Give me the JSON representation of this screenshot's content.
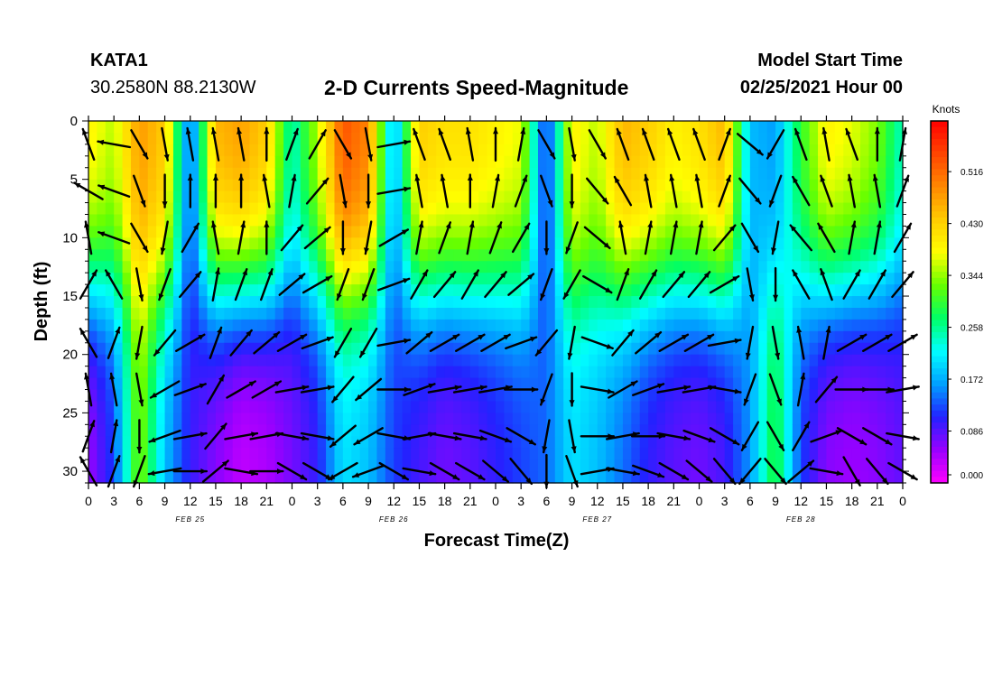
{
  "header": {
    "station_id": "KATA1",
    "coordinates": "30.2580N 88.2130W",
    "title": "2-D Currents Speed-Magnitude",
    "model_start_label": "Model Start Time",
    "model_start_value": "02/25/2021 Hour 00"
  },
  "chart_data": {
    "type": "heatmap",
    "title": "2-D Currents Speed-Magnitude",
    "xlabel": "Forecast Time(Z)",
    "ylabel": "Depth (ft)",
    "x_ticks": [
      "0",
      "3",
      "6",
      "9",
      "12",
      "15",
      "18",
      "21",
      "0",
      "3",
      "6",
      "9",
      "12",
      "15",
      "18",
      "21",
      "0",
      "3",
      "6",
      "9",
      "12",
      "15",
      "18",
      "21",
      "0",
      "3",
      "6",
      "9",
      "12",
      "15",
      "18",
      "21",
      "0"
    ],
    "x_range_hours": [
      0,
      96
    ],
    "date_labels": [
      {
        "hour": 12,
        "label": "FEB 25"
      },
      {
        "hour": 36,
        "label": "FEB 26"
      },
      {
        "hour": 60,
        "label": "FEB 27"
      },
      {
        "hour": 84,
        "label": "FEB 28"
      }
    ],
    "y_ticks": [
      0,
      5,
      10,
      15,
      20,
      25,
      30
    ],
    "ylim": [
      31,
      0
    ],
    "colorbar": {
      "unit": "Knots",
      "range": [
        0.0,
        0.6
      ],
      "ticks": [
        "0.000",
        "0.086",
        "0.172",
        "0.258",
        "0.344",
        "0.430",
        "0.516"
      ],
      "colors": [
        "#ff00ff",
        "#9900ff",
        "#2222ff",
        "#00a0ff",
        "#00ffff",
        "#00ff66",
        "#66ff00",
        "#ffff00",
        "#ffcc00",
        "#ff8800",
        "#ff4400",
        "#ff0000"
      ]
    },
    "profiles": [
      {
        "hour": 0,
        "surface": 0.4,
        "bottom": 0.05
      },
      {
        "hour": 3,
        "surface": 0.36,
        "bottom": 0.12
      },
      {
        "hour": 6,
        "surface": 0.48,
        "bottom": 0.34
      },
      {
        "hour": 9,
        "surface": 0.44,
        "bottom": 0.18
      },
      {
        "hour": 12,
        "surface": 0.12,
        "bottom": 0.1
      },
      {
        "hour": 15,
        "surface": 0.46,
        "bottom": 0.06
      },
      {
        "hour": 18,
        "surface": 0.48,
        "bottom": 0.03
      },
      {
        "hour": 21,
        "surface": 0.44,
        "bottom": 0.04
      },
      {
        "hour": 24,
        "surface": 0.24,
        "bottom": 0.07
      },
      {
        "hour": 27,
        "surface": 0.36,
        "bottom": 0.1
      },
      {
        "hour": 30,
        "surface": 0.54,
        "bottom": 0.2
      },
      {
        "hour": 33,
        "surface": 0.5,
        "bottom": 0.18
      },
      {
        "hour": 36,
        "surface": 0.16,
        "bottom": 0.12
      },
      {
        "hour": 39,
        "surface": 0.44,
        "bottom": 0.09
      },
      {
        "hour": 42,
        "surface": 0.42,
        "bottom": 0.07
      },
      {
        "hour": 45,
        "surface": 0.42,
        "bottom": 0.08
      },
      {
        "hour": 48,
        "surface": 0.4,
        "bottom": 0.1
      },
      {
        "hour": 51,
        "surface": 0.38,
        "bottom": 0.12
      },
      {
        "hour": 54,
        "surface": 0.1,
        "bottom": 0.14
      },
      {
        "hour": 57,
        "surface": 0.4,
        "bottom": 0.2
      },
      {
        "hour": 60,
        "surface": 0.36,
        "bottom": 0.18
      },
      {
        "hour": 63,
        "surface": 0.46,
        "bottom": 0.14
      },
      {
        "hour": 66,
        "surface": 0.44,
        "bottom": 0.1
      },
      {
        "hour": 69,
        "surface": 0.4,
        "bottom": 0.08
      },
      {
        "hour": 72,
        "surface": 0.42,
        "bottom": 0.07
      },
      {
        "hour": 75,
        "surface": 0.46,
        "bottom": 0.09
      },
      {
        "hour": 78,
        "surface": 0.18,
        "bottom": 0.16
      },
      {
        "hour": 81,
        "surface": 0.16,
        "bottom": 0.3
      },
      {
        "hour": 84,
        "surface": 0.3,
        "bottom": 0.12
      },
      {
        "hour": 87,
        "surface": 0.4,
        "bottom": 0.06
      },
      {
        "hour": 90,
        "surface": 0.38,
        "bottom": 0.05
      },
      {
        "hour": 93,
        "surface": 0.34,
        "bottom": 0.06
      },
      {
        "hour": 96,
        "surface": 0.24,
        "bottom": 0.08
      }
    ],
    "vector_depths_ft": [
      2,
      6,
      10,
      14,
      19,
      23,
      27,
      30
    ],
    "vector_directions_deg": [
      [
        340,
        300,
        350,
        30,
        330,
        350,
        20,
        330
      ],
      [
        280,
        290,
        290,
        330,
        20,
        350,
        10,
        20
      ],
      [
        150,
        160,
        150,
        170,
        190,
        170,
        180,
        200
      ],
      [
        170,
        180,
        190,
        200,
        220,
        240,
        250,
        260
      ],
      [
        350,
        0,
        30,
        40,
        60,
        70,
        80,
        90
      ],
      [
        350,
        0,
        350,
        10,
        20,
        30,
        40,
        50
      ],
      [
        350,
        0,
        10,
        20,
        40,
        60,
        80,
        100
      ],
      [
        0,
        350,
        0,
        20,
        50,
        60,
        80,
        90
      ],
      [
        20,
        10,
        40,
        50,
        60,
        80,
        100,
        120
      ],
      [
        30,
        40,
        50,
        60,
        70,
        80,
        100,
        120
      ],
      [
        150,
        170,
        180,
        200,
        210,
        220,
        230,
        240
      ],
      [
        170,
        180,
        190,
        200,
        210,
        230,
        240,
        250
      ],
      [
        80,
        80,
        60,
        70,
        80,
        90,
        100,
        120
      ],
      [
        340,
        350,
        10,
        30,
        50,
        70,
        80,
        100
      ],
      [
        340,
        350,
        20,
        40,
        60,
        80,
        100,
        120
      ],
      [
        350,
        0,
        10,
        30,
        60,
        80,
        100,
        120
      ],
      [
        0,
        10,
        20,
        40,
        60,
        80,
        110,
        130
      ],
      [
        10,
        20,
        30,
        50,
        70,
        90,
        120,
        140
      ],
      [
        150,
        160,
        180,
        200,
        220,
        200,
        190,
        180
      ],
      [
        170,
        180,
        200,
        210,
        190,
        180,
        170,
        160
      ],
      [
        150,
        140,
        130,
        120,
        110,
        100,
        90,
        80
      ],
      [
        340,
        330,
        350,
        20,
        40,
        60,
        80,
        100
      ],
      [
        340,
        350,
        10,
        30,
        50,
        70,
        90,
        110
      ],
      [
        340,
        350,
        10,
        40,
        60,
        80,
        100,
        120
      ],
      [
        340,
        350,
        10,
        40,
        60,
        80,
        110,
        130
      ],
      [
        20,
        20,
        40,
        60,
        80,
        100,
        120,
        140
      ],
      [
        130,
        140,
        150,
        170,
        190,
        200,
        210,
        220
      ],
      [
        210,
        200,
        190,
        180,
        170,
        160,
        150,
        140
      ],
      [
        340,
        330,
        320,
        330,
        350,
        10,
        30,
        50
      ],
      [
        350,
        340,
        330,
        340,
        10,
        40,
        70,
        100
      ],
      [
        340,
        350,
        10,
        30,
        60,
        90,
        120,
        150
      ],
      [
        0,
        350,
        10,
        30,
        60,
        90,
        120,
        140
      ],
      [
        10,
        20,
        30,
        40,
        60,
        80,
        100,
        120
      ]
    ],
    "grid": false,
    "legend": "right"
  }
}
